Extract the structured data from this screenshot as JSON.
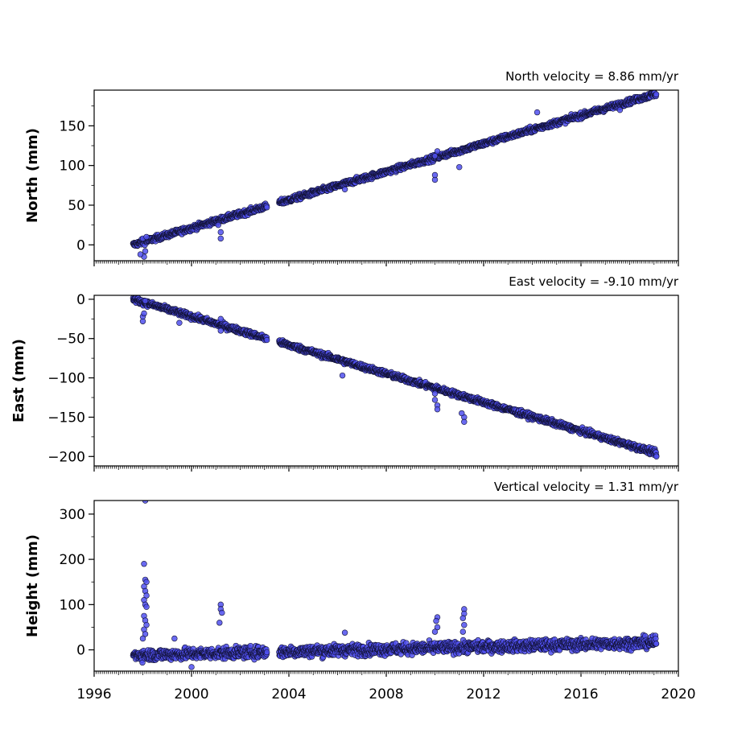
{
  "chart_data": [
    {
      "type": "scatter",
      "title": "North velocity = 8.86 mm/yr",
      "xlabel": "",
      "ylabel": "North (mm)",
      "xlim": [
        1996,
        2020
      ],
      "ylim": [
        -20,
        195
      ],
      "yticks": [
        0,
        50,
        100,
        150
      ],
      "xticks": [
        1996,
        2000,
        2004,
        2008,
        2012,
        2016,
        2020
      ],
      "show_xtick_labels": false,
      "velocity_mm_per_yr": 8.86,
      "intercept_mm": 0,
      "series": [
        {
          "segments": [
            [
              1997.6,
              2003.1
            ],
            [
              2003.6,
              2019.1
            ]
          ],
          "noise_mm": 2.5
        }
      ],
      "outliers": [
        [
          1998.0,
          8
        ],
        [
          1998.05,
          -15
        ],
        [
          1998.1,
          -8
        ],
        [
          1997.9,
          -12
        ],
        [
          1998.15,
          10
        ],
        [
          2001.2,
          8
        ],
        [
          2001.2,
          16
        ],
        [
          2001.1,
          25
        ],
        [
          2010.0,
          82
        ],
        [
          2010.0,
          88
        ],
        [
          2010.1,
          118
        ],
        [
          2010.0,
          112
        ],
        [
          2011.0,
          98
        ],
        [
          2014.2,
          167
        ],
        [
          2006.3,
          70
        ],
        [
          2017.6,
          170
        ]
      ],
      "grid": false,
      "marker_color": "#5050ee",
      "marker_edge": "#111133"
    },
    {
      "type": "scatter",
      "title": "East velocity = -9.10 mm/yr",
      "xlabel": "",
      "ylabel": "East (mm)",
      "xlim": [
        1996,
        2020
      ],
      "ylim": [
        -212,
        5
      ],
      "yticks": [
        0,
        -50,
        -100,
        -150,
        -200
      ],
      "xticks": [
        1996,
        2000,
        2004,
        2008,
        2012,
        2016,
        2020
      ],
      "show_xtick_labels": false,
      "velocity_mm_per_yr": -9.1,
      "intercept_mm": 0,
      "series": [
        {
          "segments": [
            [
              1997.6,
              2003.1
            ],
            [
              2003.6,
              2019.1
            ]
          ],
          "noise_mm": 2.5
        }
      ],
      "outliers": [
        [
          1998.0,
          -28
        ],
        [
          1998.0,
          -22
        ],
        [
          1998.05,
          -18
        ],
        [
          1998.1,
          -2
        ],
        [
          1999.5,
          -30
        ],
        [
          2001.2,
          -25
        ],
        [
          2001.2,
          -40
        ],
        [
          2010.0,
          -120
        ],
        [
          2010.0,
          -128
        ],
        [
          2010.1,
          -135
        ],
        [
          2010.1,
          -140
        ],
        [
          2011.2,
          -150
        ],
        [
          2011.2,
          -156
        ],
        [
          2011.1,
          -145
        ],
        [
          2006.2,
          -97
        ],
        [
          2019.1,
          -200
        ]
      ],
      "grid": false,
      "marker_color": "#5050ee",
      "marker_edge": "#111133"
    },
    {
      "type": "scatter",
      "title": "Vertical velocity = 1.31 mm/yr",
      "xlabel": "",
      "ylabel": "Height (mm)",
      "xlim": [
        1996,
        2020
      ],
      "ylim": [
        -47,
        330
      ],
      "yticks": [
        0,
        100,
        200,
        300
      ],
      "xticks": [
        1996,
        2000,
        2004,
        2008,
        2012,
        2016,
        2020
      ],
      "show_xtick_labels": true,
      "velocity_mm_per_yr": 1.31,
      "intercept_mm": -12,
      "series": [
        {
          "segments": [
            [
              1997.6,
              2003.1
            ],
            [
              2003.6,
              2019.1
            ]
          ],
          "noise_mm": 9
        }
      ],
      "outliers": [
        [
          1998.1,
          330
        ],
        [
          1998.05,
          190
        ],
        [
          1998.1,
          155
        ],
        [
          1998.15,
          150
        ],
        [
          1998.05,
          140
        ],
        [
          1998.1,
          130
        ],
        [
          1998.15,
          120
        ],
        [
          1998.05,
          110
        ],
        [
          1998.1,
          100
        ],
        [
          1998.15,
          95
        ],
        [
          1998.05,
          75
        ],
        [
          1998.1,
          65
        ],
        [
          1998.15,
          55
        ],
        [
          1998.05,
          45
        ],
        [
          1998.1,
          35
        ],
        [
          1998.0,
          25
        ],
        [
          2001.2,
          100
        ],
        [
          2001.2,
          90
        ],
        [
          2001.25,
          82
        ],
        [
          2001.15,
          60
        ],
        [
          2006.3,
          38
        ],
        [
          2010.1,
          72
        ],
        [
          2010.05,
          64
        ],
        [
          2010.1,
          50
        ],
        [
          2010.0,
          40
        ],
        [
          2011.2,
          90
        ],
        [
          2011.2,
          80
        ],
        [
          2011.15,
          70
        ],
        [
          2011.2,
          55
        ],
        [
          2011.15,
          40
        ],
        [
          2000.0,
          -38
        ],
        [
          1999.3,
          25
        ]
      ],
      "grid": false,
      "marker_color": "#5050ee",
      "marker_edge": "#111133"
    }
  ]
}
